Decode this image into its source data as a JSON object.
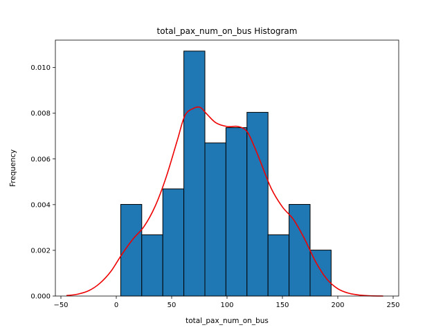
{
  "chart_data": {
    "type": "bar",
    "title": "total_pax_num_on_bus Histogram",
    "xlabel": "total_pax_num_on_bus",
    "ylabel": "Frequency",
    "xlim": [
      -55,
      255
    ],
    "ylim": [
      0,
      0.0112
    ],
    "x_ticks": [
      -50,
      0,
      50,
      100,
      150,
      200,
      250
    ],
    "x_tick_labels": [
      "−50",
      "0",
      "50",
      "100",
      "150",
      "200",
      "250"
    ],
    "y_ticks": [
      0,
      0.002,
      0.004,
      0.006,
      0.008,
      0.01
    ],
    "y_tick_labels": [
      "0.000",
      "0.002",
      "0.004",
      "0.006",
      "0.008",
      "0.010"
    ],
    "grid": false,
    "bins": [
      {
        "x0": 4,
        "x1": 23,
        "value": 0.00401
      },
      {
        "x0": 23,
        "x1": 42,
        "value": 0.00268
      },
      {
        "x0": 42,
        "x1": 61,
        "value": 0.00469
      },
      {
        "x0": 61,
        "x1": 80,
        "value": 0.01072
      },
      {
        "x0": 80,
        "x1": 99,
        "value": 0.0067
      },
      {
        "x0": 99,
        "x1": 118,
        "value": 0.00737
      },
      {
        "x0": 118,
        "x1": 137,
        "value": 0.00804
      },
      {
        "x0": 137,
        "x1": 156,
        "value": 0.00268
      },
      {
        "x0": 156,
        "x1": 175,
        "value": 0.00401
      },
      {
        "x0": 175,
        "x1": 194,
        "value": 0.00201
      }
    ],
    "kde": {
      "x": [
        -45,
        -35,
        -25,
        -15,
        -5,
        5,
        15,
        25,
        35,
        45,
        55,
        62,
        70,
        76,
        82,
        90,
        100,
        110,
        118,
        125,
        130,
        140,
        150,
        160,
        170,
        180,
        190,
        200,
        210,
        220,
        230,
        241
      ],
      "y": [
        2e-05,
        8e-05,
        0.00023,
        0.00055,
        0.00107,
        0.00182,
        0.00249,
        0.00304,
        0.00392,
        0.0052,
        0.0068,
        0.0079,
        0.00822,
        0.00825,
        0.00795,
        0.00758,
        0.00742,
        0.00742,
        0.0072,
        0.0065,
        0.0059,
        0.0047,
        0.0039,
        0.00335,
        0.0025,
        0.0015,
        0.00075,
        0.00032,
        0.00012,
        4e-05,
        1e-05,
        0.0
      ],
      "color": "#ee0000"
    },
    "bar_color": "#1f77b4",
    "bar_edge_color": "#000000"
  }
}
